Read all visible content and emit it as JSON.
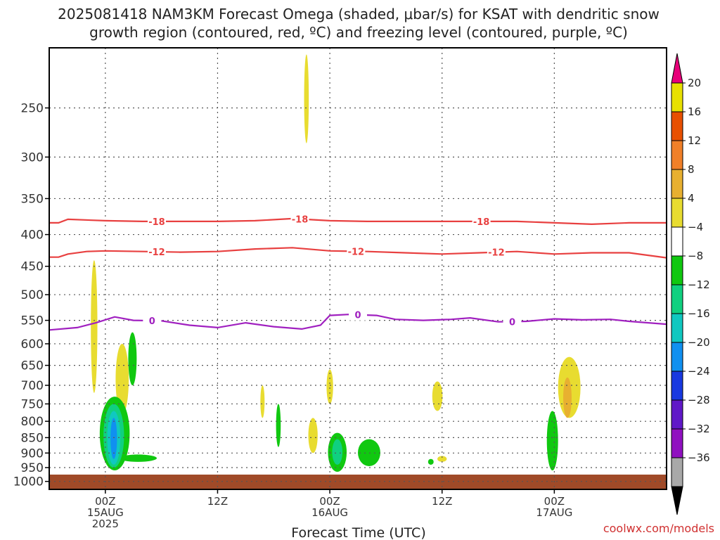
{
  "chart_data": {
    "type": "heatmap",
    "title_line1": "2025081418 NAM3KM Forecast Omega (shaded, μbar/s) for KSAT with dendritic snow",
    "title_line2": "growth region (contoured, red, ºC) and freezing level (contoured, purple, ºC)",
    "xlabel": "Forecast Time (UTC)",
    "credit": "coolwx.com/models",
    "x_range_hours": [
      -6,
      60
    ],
    "y_range_hpa": [
      200,
      1030
    ],
    "y_scale": "log-pressure (inverted)",
    "grid": "dotted",
    "y_ticks": [
      250,
      300,
      350,
      400,
      450,
      500,
      550,
      600,
      650,
      700,
      750,
      800,
      850,
      900,
      950,
      1000
    ],
    "x_ticks": [
      {
        "hour": 0,
        "lines": [
          "00Z",
          "15AUG",
          "2025"
        ]
      },
      {
        "hour": 12,
        "lines": [
          "12Z"
        ]
      },
      {
        "hour": 24,
        "lines": [
          "00Z",
          "16AUG"
        ]
      },
      {
        "hour": 36,
        "lines": [
          "12Z"
        ]
      },
      {
        "hour": 48,
        "lines": [
          "00Z",
          "17AUG"
        ]
      }
    ],
    "colorbar": {
      "labels": [
        "20",
        "16",
        "12",
        "8",
        "4",
        "−4",
        "−8",
        "−12",
        "−16",
        "−20",
        "−24",
        "−28",
        "−32",
        "−36"
      ],
      "colors": [
        "#e8e000",
        "#e85000",
        "#f08028",
        "#e8b030",
        "#e8dc30",
        "#ffffff",
        "#10c810",
        "#10d080",
        "#10c8c0",
        "#1090f0",
        "#1838e0",
        "#6018c8",
        "#9010c0",
        "#a8a8a8"
      ],
      "top_cap_color": "#e8007a",
      "bottom_cap_color": "#000000"
    },
    "contours": [
      {
        "label": "-18",
        "color": "#e84040",
        "points": [
          [
            -6,
            383
          ],
          [
            -5,
            383
          ],
          [
            -4,
            378
          ],
          [
            0,
            380
          ],
          [
            4,
            381
          ],
          [
            8,
            381
          ],
          [
            12,
            381
          ],
          [
            16,
            380
          ],
          [
            20,
            377
          ],
          [
            24,
            380
          ],
          [
            28,
            381
          ],
          [
            32,
            381
          ],
          [
            36,
            381
          ],
          [
            40,
            381
          ],
          [
            44,
            381
          ],
          [
            48,
            383
          ],
          [
            52,
            385
          ],
          [
            56,
            383
          ],
          [
            60,
            383
          ]
        ],
        "label_hours": [
          5.5,
          20.8,
          40.2
        ]
      },
      {
        "label": "-12",
        "color": "#e84040",
        "points": [
          [
            -6,
            435
          ],
          [
            -5,
            435
          ],
          [
            -4,
            430
          ],
          [
            -2,
            426
          ],
          [
            0,
            425
          ],
          [
            4,
            426
          ],
          [
            8,
            427
          ],
          [
            12,
            426
          ],
          [
            16,
            422
          ],
          [
            20,
            420
          ],
          [
            24,
            425
          ],
          [
            28,
            426
          ],
          [
            32,
            428
          ],
          [
            36,
            430
          ],
          [
            40,
            428
          ],
          [
            44,
            426
          ],
          [
            48,
            430
          ],
          [
            52,
            428
          ],
          [
            56,
            428
          ],
          [
            60,
            436
          ]
        ],
        "label_hours": [
          5.5,
          26.8,
          41.8
        ]
      },
      {
        "label": "0",
        "color": "#a020c0",
        "points": [
          [
            -6,
            570
          ],
          [
            -3,
            565
          ],
          [
            -1,
            555
          ],
          [
            1,
            543
          ],
          [
            3,
            550
          ],
          [
            6,
            551
          ],
          [
            9,
            560
          ],
          [
            12,
            565
          ],
          [
            15,
            555
          ],
          [
            18,
            563
          ],
          [
            21,
            568
          ],
          [
            23,
            560
          ],
          [
            24,
            540
          ],
          [
            26,
            538
          ],
          [
            29,
            540
          ],
          [
            31,
            548
          ],
          [
            34,
            550
          ],
          [
            37,
            548
          ],
          [
            39,
            545
          ],
          [
            42,
            553
          ],
          [
            45,
            552
          ],
          [
            48,
            547
          ],
          [
            51,
            549
          ],
          [
            54,
            548
          ],
          [
            56,
            552
          ],
          [
            60,
            558
          ]
        ],
        "label_hours": [
          5.0,
          27.0,
          43.5
        ]
      }
    ],
    "ground": {
      "color": "#a04a28",
      "top_hpa": 975
    },
    "omega_blobs": [
      {
        "color": "#e8dc30",
        "center": [
          -1.2,
          540
        ],
        "radius_hours": 0.35,
        "pressure_span": [
          440,
          720
        ]
      },
      {
        "color": "#e8dc30",
        "center": [
          21.5,
          235
        ],
        "radius_hours": 0.25,
        "pressure_span": [
          205,
          285
        ]
      },
      {
        "color": "#e8dc30",
        "center": [
          1.8,
          700
        ],
        "radius_hours": 0.7,
        "pressure_span": [
          600,
          780
        ]
      },
      {
        "color": "#e8dc30",
        "center": [
          24.0,
          700
        ],
        "radius_hours": 0.35,
        "pressure_span": [
          660,
          750
        ]
      },
      {
        "color": "#e8dc30",
        "center": [
          22.2,
          845
        ],
        "radius_hours": 0.5,
        "pressure_span": [
          790,
          900
        ]
      },
      {
        "color": "#e8dc30",
        "center": [
          16.8,
          760
        ],
        "radius_hours": 0.2,
        "pressure_span": [
          700,
          790
        ]
      },
      {
        "color": "#e8dc30",
        "center": [
          35.5,
          720
        ],
        "radius_hours": 0.55,
        "pressure_span": [
          690,
          770
        ]
      },
      {
        "color": "#e8dc30",
        "center": [
          36.0,
          920
        ],
        "radius_hours": 0.5,
        "pressure_span": [
          910,
          930
        ]
      },
      {
        "color": "#e8dc30",
        "center": [
          49.6,
          715
        ],
        "radius_hours": 1.2,
        "pressure_span": [
          630,
          790
        ]
      },
      {
        "color": "#e8b030",
        "center": [
          49.4,
          735
        ],
        "radius_hours": 0.45,
        "pressure_span": [
          680,
          790
        ]
      },
      {
        "color": "#10c810",
        "center": [
          2.9,
          620
        ],
        "radius_hours": 0.45,
        "pressure_span": [
          575,
          700
        ]
      },
      {
        "color": "#10c810",
        "center": [
          1.0,
          880
        ],
        "radius_hours": 1.6,
        "pressure_span": [
          730,
          960
        ]
      },
      {
        "color": "#10c810",
        "center": [
          3.5,
          915
        ],
        "radius_hours": 2.0,
        "pressure_span": [
          905,
          930
        ]
      },
      {
        "color": "#10d080",
        "center": [
          0.9,
          860
        ],
        "radius_hours": 1.1,
        "pressure_span": [
          750,
          950
        ]
      },
      {
        "color": "#10c8c0",
        "center": [
          0.9,
          850
        ],
        "radius_hours": 0.7,
        "pressure_span": [
          770,
          940
        ]
      },
      {
        "color": "#1090f0",
        "center": [
          0.9,
          840
        ],
        "radius_hours": 0.35,
        "pressure_span": [
          790,
          920
        ]
      },
      {
        "color": "#10c810",
        "center": [
          18.5,
          810
        ],
        "radius_hours": 0.25,
        "pressure_span": [
          750,
          880
        ]
      },
      {
        "color": "#10c810",
        "center": [
          24.8,
          905
        ],
        "radius_hours": 1.0,
        "pressure_span": [
          835,
          965
        ]
      },
      {
        "color": "#10d080",
        "center": [
          24.8,
          900
        ],
        "radius_hours": 0.55,
        "pressure_span": [
          855,
          940
        ]
      },
      {
        "color": "#10c810",
        "center": [
          28.2,
          898
        ],
        "radius_hours": 1.2,
        "pressure_span": [
          855,
          945
        ]
      },
      {
        "color": "#10c810",
        "center": [
          34.8,
          930
        ],
        "radius_hours": 0.3,
        "pressure_span": [
          920,
          940
        ]
      },
      {
        "color": "#10c810",
        "center": [
          47.8,
          850
        ],
        "radius_hours": 0.6,
        "pressure_span": [
          770,
          960
        ]
      }
    ]
  }
}
